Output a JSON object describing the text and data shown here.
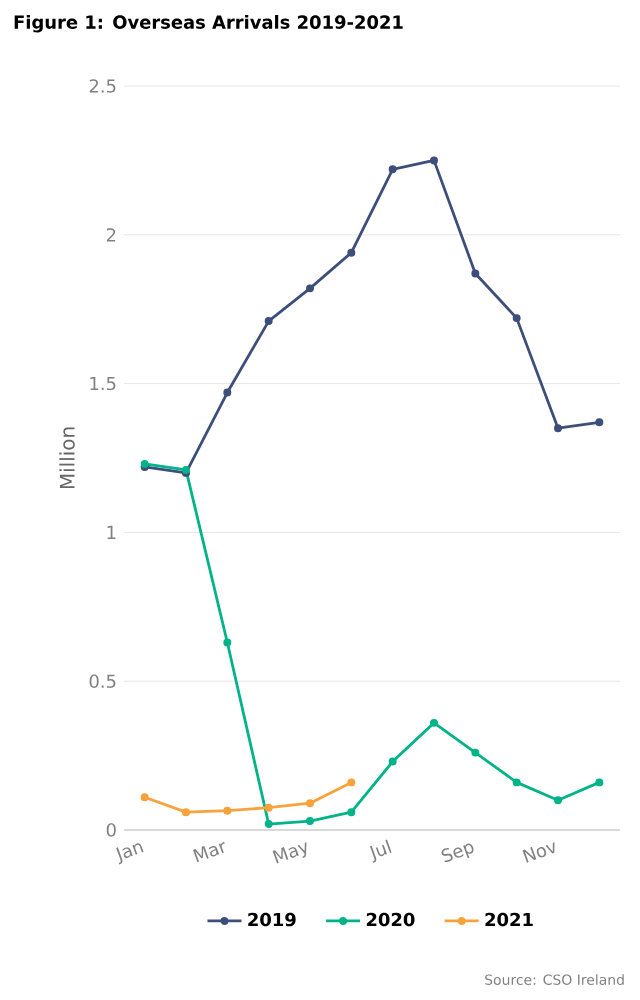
{
  "chart_data": {
    "type": "line",
    "title": "Figure 1: Overseas Arrivals 2019-2021",
    "ylabel": "Million",
    "categories": [
      "Jan",
      null,
      "Mar",
      null,
      "May",
      null,
      "Jul",
      null,
      "Sep",
      null,
      "Nov",
      null
    ],
    "series": [
      {
        "name": "2019",
        "color": "#3d4e7a",
        "values": [
          1.22,
          1.2,
          1.47,
          1.71,
          1.82,
          1.94,
          2.22,
          2.25,
          1.87,
          1.72,
          1.35,
          1.37
        ]
      },
      {
        "name": "2020",
        "color": "#00b388",
        "values": [
          1.23,
          1.21,
          0.63,
          0.02,
          0.03,
          0.06,
          0.23,
          0.36,
          0.26,
          0.16,
          0.1,
          0.16
        ]
      },
      {
        "name": "2021",
        "color": "#f7a23b",
        "values": [
          0.11,
          0.06,
          0.065,
          0.075,
          0.09,
          0.16,
          null,
          null,
          null,
          null,
          null,
          null
        ]
      }
    ],
    "ylim": [
      0,
      2.5
    ],
    "yticks": [
      0,
      0.5,
      1,
      1.5,
      2,
      2.5
    ],
    "grid": "y",
    "legend": "bottom",
    "marker": "circle",
    "line_style": "solid",
    "annotations": [
      "Source: CSO Ireland"
    ]
  }
}
